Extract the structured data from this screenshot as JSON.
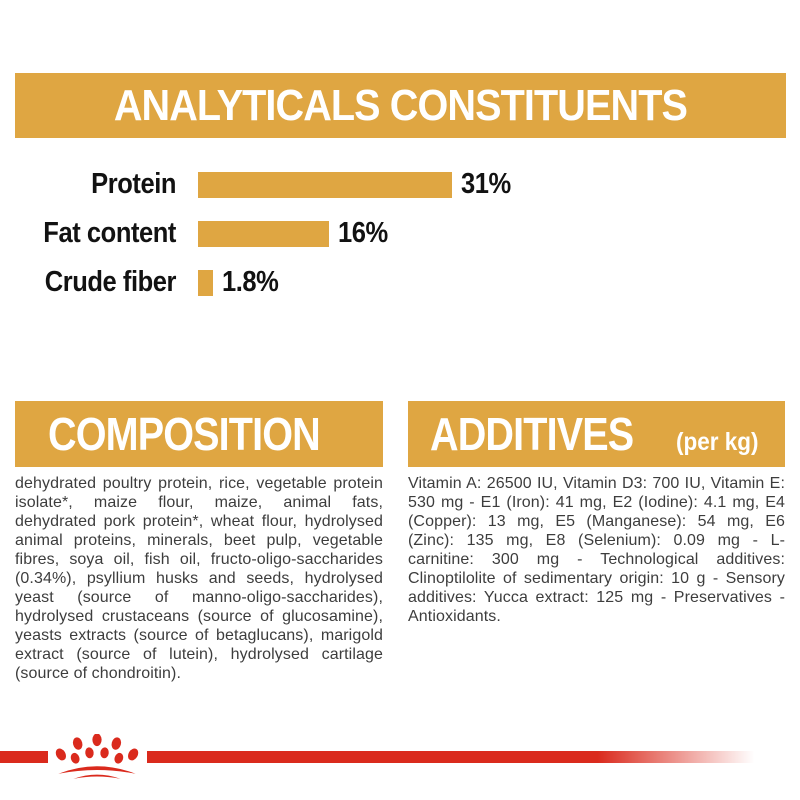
{
  "header": {
    "title": "ANALYTICALS CONSTITUENTS"
  },
  "chart_data": {
    "type": "bar",
    "orientation": "horizontal",
    "categories": [
      "Protein",
      "Fat content",
      "Crude fiber"
    ],
    "values": [
      31,
      16,
      1.8
    ],
    "value_labels": [
      "31%",
      "16%",
      "1.8%"
    ],
    "xlim": [
      0,
      33
    ],
    "bar_color": "#DFA642",
    "legend": "none",
    "grid": false
  },
  "composition": {
    "title": "COMPOSITION",
    "body": "dehydrated poultry protein, rice, vegetable protein isolate*, maize flour, maize, animal fats, dehydrated pork protein*, wheat flour, hydrolysed animal proteins, minerals, beet pulp, vegetable fibres, soya oil, fish oil, fructo-oligo-saccharides (0.34%), psyllium husks and seeds, hydrolysed yeast (source of manno-oligo-saccharides), hydrolysed crustaceans (source of glucosamine), yeasts extracts (source of betaglucans), marigold extract (source of lutein), hydrolysed cartilage (source of chondroitin)."
  },
  "additives": {
    "title": "ADDITIVES",
    "unit": "(per kg)",
    "body": "Vitamin A: 26500 IU, Vitamin D3: 700 IU, Vitamin E: 530 mg - E1 (Iron): 41 mg, E2 (Iodine): 4.1 mg, E4 (Copper): 13 mg, E5 (Manganese): 54 mg, E6 (Zinc): 135 mg, E8 (Selenium): 0.09 mg - L-carnitine: 300 mg - Technological additives: Clinoptilolite of sedimentary origin: 10 g - Sensory additives: Yucca extract: 125 mg - Preservatives - Antioxidants."
  },
  "footer": {
    "logo": "royal-canin-crown-paw-logo"
  },
  "colors": {
    "gold": "#DFA642",
    "red": "#DA2A1D",
    "body_text": "#3D3D3D"
  }
}
